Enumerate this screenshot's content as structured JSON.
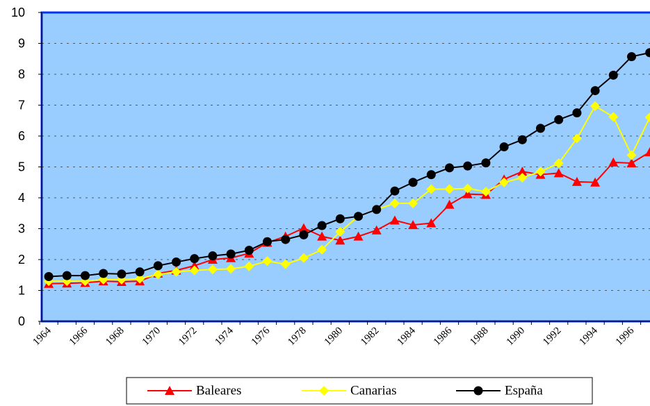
{
  "chart_data": {
    "type": "line",
    "categories": [
      "1964",
      null,
      "1966",
      null,
      "1968",
      null,
      "1970",
      null,
      "1972",
      null,
      "1974",
      null,
      "1976",
      null,
      "1978",
      null,
      "1980",
      null,
      "1982",
      null,
      "1984",
      null,
      "1986",
      null,
      "1988",
      null,
      "1990",
      null,
      "1992",
      null,
      "1994",
      null,
      "1996",
      null
    ],
    "ylim": [
      0,
      10
    ],
    "yticks": [
      0,
      1,
      2,
      3,
      4,
      5,
      6,
      7,
      8,
      9,
      10
    ],
    "grid": true,
    "legend": "bottom",
    "series": [
      {
        "name": "Baleares",
        "color": "#ff0000",
        "marker": "triangle",
        "values": [
          1.22,
          1.23,
          1.25,
          1.3,
          1.28,
          1.3,
          1.55,
          1.65,
          1.8,
          2.0,
          2.05,
          2.2,
          2.55,
          2.75,
          3.02,
          2.75,
          2.62,
          2.75,
          2.95,
          3.27,
          3.12,
          3.18,
          3.78,
          4.12,
          4.1,
          4.6,
          4.85,
          4.75,
          4.8,
          4.52,
          4.5,
          5.15,
          5.12,
          5.48
        ]
      },
      {
        "name": "Canarias",
        "color": "#ffff00",
        "marker": "diamond",
        "values": [
          1.3,
          1.3,
          1.3,
          1.35,
          1.35,
          1.38,
          1.52,
          1.6,
          1.65,
          1.68,
          1.7,
          1.78,
          1.95,
          1.85,
          2.05,
          2.32,
          2.9,
          3.4,
          3.62,
          3.82,
          3.82,
          4.28,
          4.28,
          4.3,
          4.2,
          4.5,
          4.65,
          4.85,
          5.12,
          5.92,
          6.97,
          6.62,
          5.38,
          6.6
        ]
      },
      {
        "name": "España",
        "color": "#000000",
        "marker": "circle",
        "values": [
          1.45,
          1.48,
          1.48,
          1.55,
          1.53,
          1.6,
          1.8,
          1.92,
          2.03,
          2.12,
          2.18,
          2.3,
          2.58,
          2.65,
          2.8,
          3.1,
          3.32,
          3.4,
          3.62,
          4.22,
          4.5,
          4.75,
          4.97,
          5.03,
          5.13,
          5.65,
          5.88,
          6.25,
          6.53,
          6.75,
          7.47,
          7.97,
          8.57,
          8.7
        ]
      }
    ]
  }
}
